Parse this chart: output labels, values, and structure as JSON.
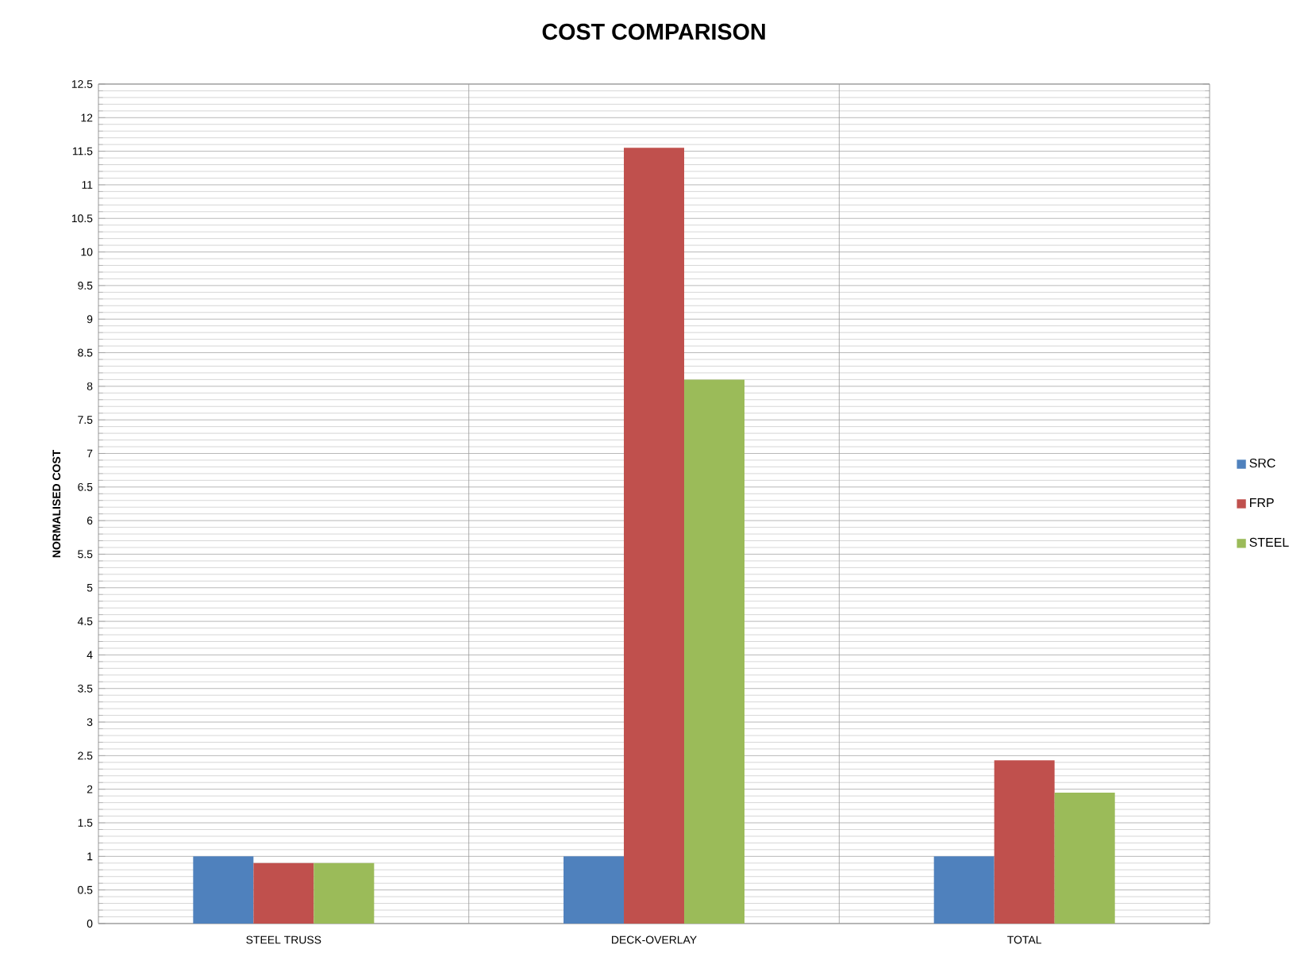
{
  "chart_data": {
    "type": "bar",
    "title": "COST COMPARISON",
    "ylabel": "NORMALISED COST",
    "categories": [
      "STEEL TRUSS",
      "DECK-OVERLAY",
      "TOTAL"
    ],
    "series": [
      {
        "name": "SRC",
        "color": "#4f81bd",
        "values": [
          1,
          1,
          1
        ]
      },
      {
        "name": "FRP",
        "color": "#c0504d",
        "values": [
          0.9,
          11.55,
          2.43
        ]
      },
      {
        "name": "STEEL",
        "color": "#9bbb59",
        "values": [
          0.9,
          8.1,
          1.95
        ]
      }
    ],
    "ylim": [
      0,
      12.5
    ],
    "yticks": [
      0,
      0.5,
      1,
      1.5,
      2,
      2.5,
      3,
      3.5,
      4,
      4.5,
      5,
      5.5,
      6,
      6.5,
      7,
      7.5,
      8,
      8.5,
      9,
      9.5,
      10,
      10.5,
      11,
      11.5,
      12,
      12.5
    ],
    "grid": true,
    "legend": "right"
  }
}
